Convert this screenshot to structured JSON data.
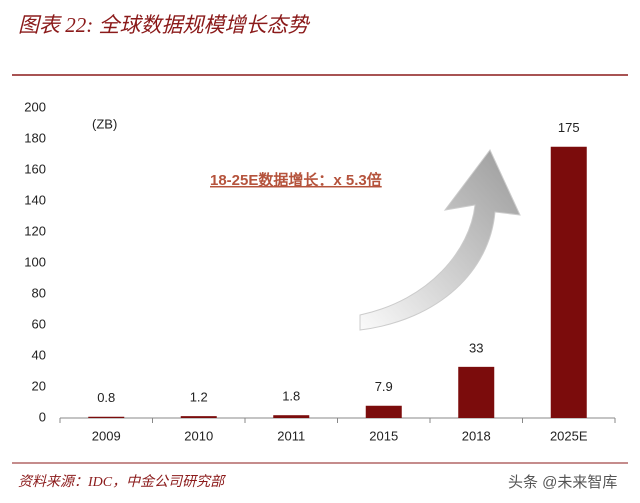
{
  "chart_data": {
    "type": "bar",
    "title": "图表 22: 全球数据规模增长态势",
    "unit_label": "(ZB)",
    "annotation": "18-25E数据增长：x 5.3倍",
    "source": "资料来源：IDC，中金公司研究部",
    "watermark": "头条 @未来智库",
    "categories": [
      "2009",
      "2010",
      "2011",
      "2015",
      "2018",
      "2025E"
    ],
    "values": [
      0.8,
      1.2,
      1.8,
      7.9,
      33,
      175
    ],
    "color": "#7b0c0c",
    "ylim": [
      0,
      200
    ],
    "yticks": [
      0,
      20,
      40,
      60,
      80,
      100,
      120,
      140,
      160,
      180,
      200
    ],
    "grid": false
  }
}
